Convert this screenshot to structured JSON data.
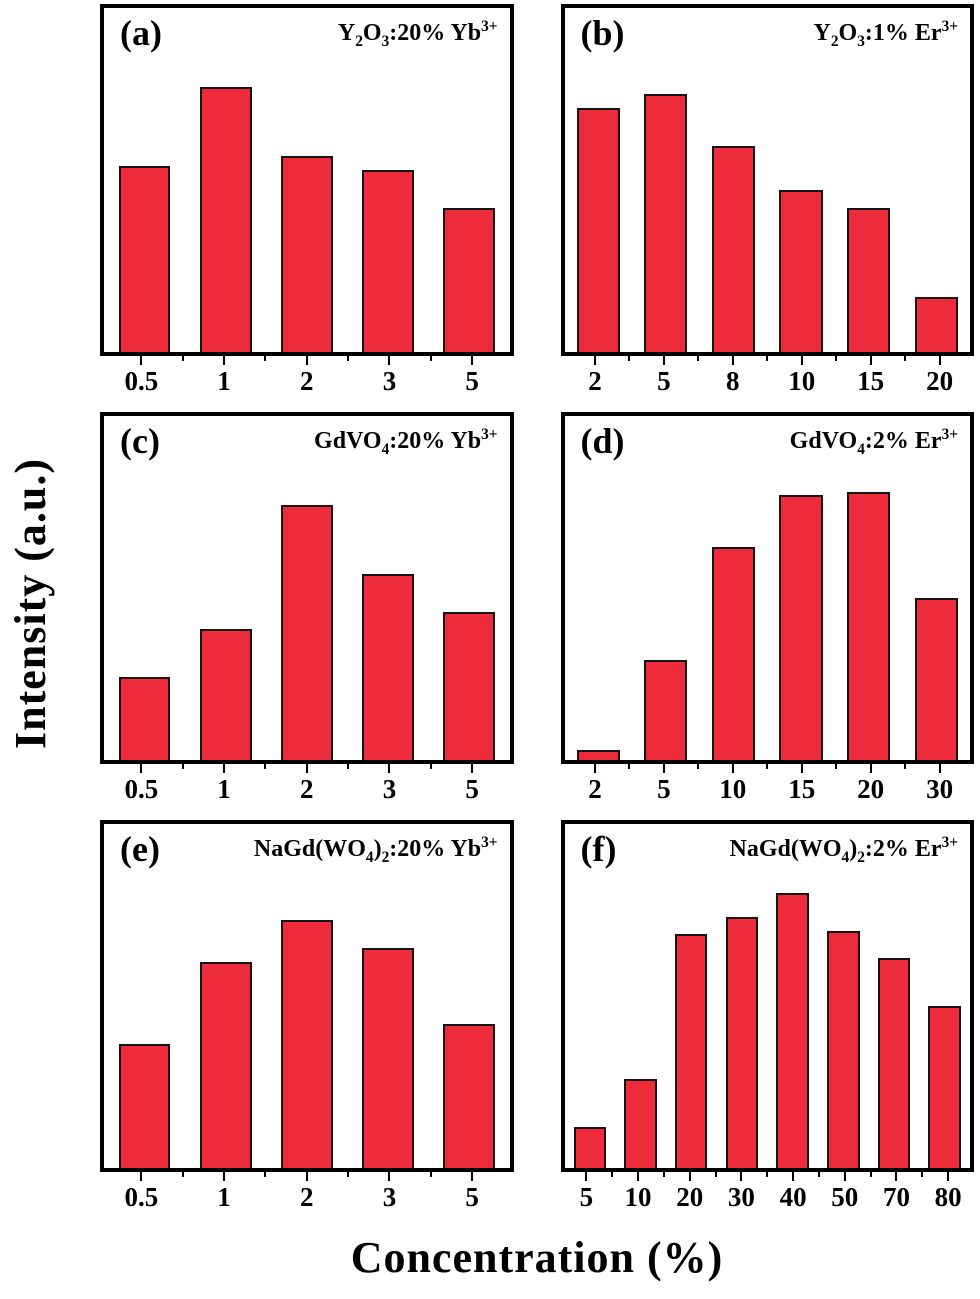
{
  "figure": {
    "y_axis_label": "Intensity (a.u.)",
    "x_axis_label": "Concentration (%)",
    "bar_color": "#ee2b3a",
    "bar_edge_color": "#141414"
  },
  "chart_data": [
    {
      "type": "bar",
      "panel_label": "(a)",
      "title": "Y~2~O~3~:20% Yb^3+^",
      "categories": [
        "0.5",
        "1",
        "2",
        "3",
        "5"
      ],
      "values": [
        54,
        77,
        57,
        53,
        42
      ],
      "xlabel": "Concentration (%)",
      "ylabel": "Intensity (a.u.)",
      "ylim": [
        0,
        100
      ],
      "grid": false,
      "legend": false
    },
    {
      "type": "bar",
      "panel_label": "(b)",
      "title": "Y~2~O~3~:1% Er^3+^",
      "categories": [
        "2",
        "5",
        "8",
        "10",
        "15",
        "20"
      ],
      "values": [
        71,
        75,
        60,
        47,
        42,
        16
      ],
      "xlabel": "Concentration (%)",
      "ylabel": "Intensity (a.u.)",
      "ylim": [
        0,
        100
      ],
      "grid": false,
      "legend": false
    },
    {
      "type": "bar",
      "panel_label": "(c)",
      "title": "GdVO~4~:20% Yb^3+^",
      "categories": [
        "0.5",
        "1",
        "2",
        "3",
        "5"
      ],
      "values": [
        24,
        38,
        74,
        54,
        43
      ],
      "xlabel": "Concentration (%)",
      "ylabel": "Intensity (a.u.)",
      "ylim": [
        0,
        100
      ],
      "grid": false,
      "legend": false
    },
    {
      "type": "bar",
      "panel_label": "(d)",
      "title": "GdVO~4~:2% Er^3+^",
      "categories": [
        "2",
        "5",
        "10",
        "15",
        "20",
        "30"
      ],
      "values": [
        3,
        29,
        62,
        77,
        78,
        47
      ],
      "xlabel": "Concentration (%)",
      "ylabel": "Intensity (a.u.)",
      "ylim": [
        0,
        100
      ],
      "grid": false,
      "legend": false
    },
    {
      "type": "bar",
      "panel_label": "(e)",
      "title": "NaGd(WO~4~)~2~:20% Yb^3+^",
      "categories": [
        "0.5",
        "1",
        "2",
        "3",
        "5"
      ],
      "values": [
        36,
        60,
        72,
        64,
        42
      ],
      "xlabel": "Concentration (%)",
      "ylabel": "Intensity (a.u.)",
      "ylim": [
        0,
        100
      ],
      "grid": false,
      "legend": false
    },
    {
      "type": "bar",
      "panel_label": "(f)",
      "title": "NaGd(WO~4~)~2~:2% Er^3+^",
      "categories": [
        "5",
        "10",
        "20",
        "30",
        "40",
        "50",
        "70",
        "80"
      ],
      "values": [
        12,
        26,
        68,
        73,
        80,
        69,
        61,
        47
      ],
      "xlabel": "Concentration (%)",
      "ylabel": "Intensity (a.u.)",
      "ylim": [
        0,
        100
      ],
      "grid": false,
      "legend": false
    }
  ]
}
